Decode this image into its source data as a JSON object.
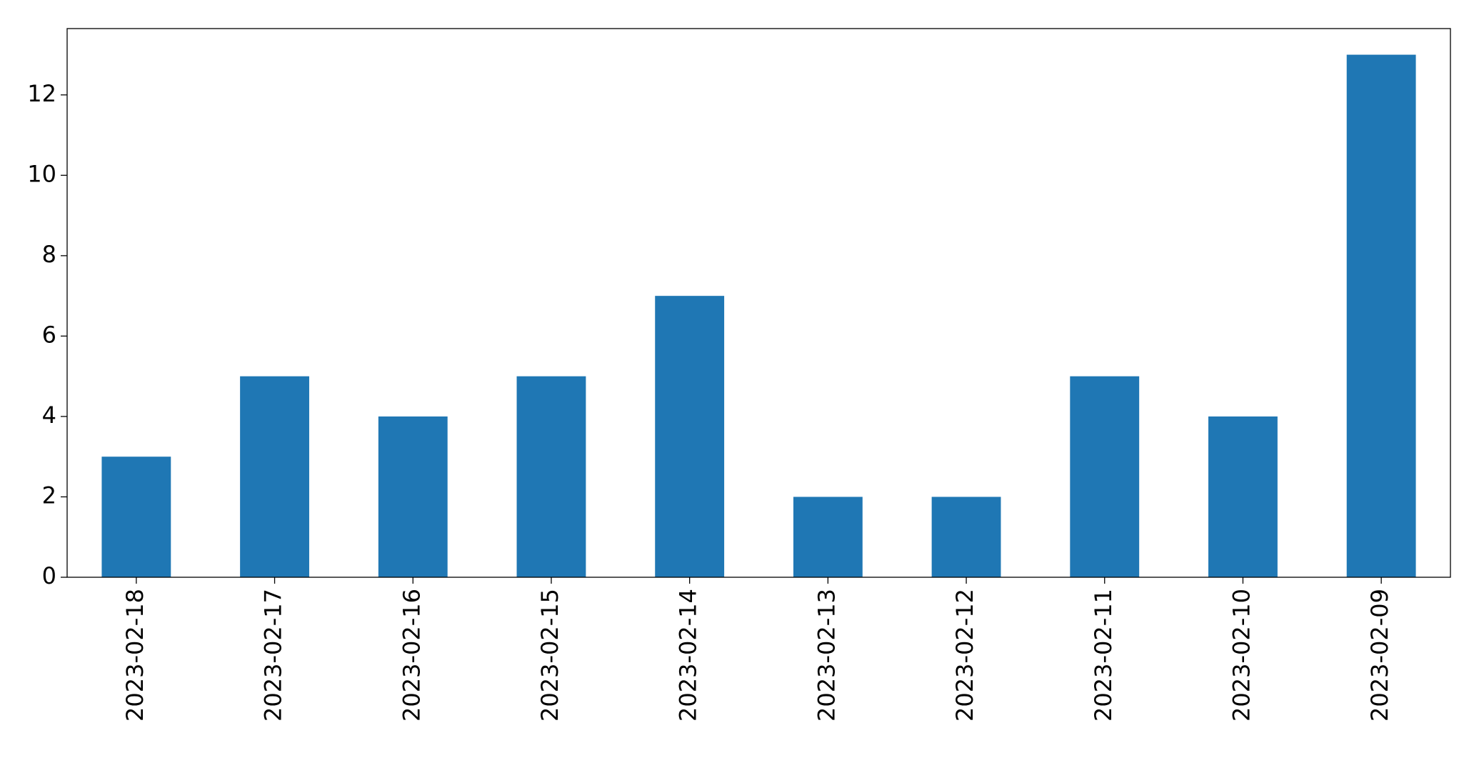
{
  "chart_data": {
    "type": "bar",
    "categories": [
      "2023-02-18",
      "2023-02-17",
      "2023-02-16",
      "2023-02-15",
      "2023-02-14",
      "2023-02-13",
      "2023-02-12",
      "2023-02-11",
      "2023-02-10",
      "2023-02-09"
    ],
    "values": [
      3,
      5,
      4,
      5,
      7,
      2,
      2,
      5,
      4,
      13
    ],
    "color": "#1f77b4",
    "ylim": [
      0,
      13.65
    ],
    "yticks": [
      0,
      2,
      4,
      6,
      8,
      10,
      12
    ],
    "grid": false
  }
}
